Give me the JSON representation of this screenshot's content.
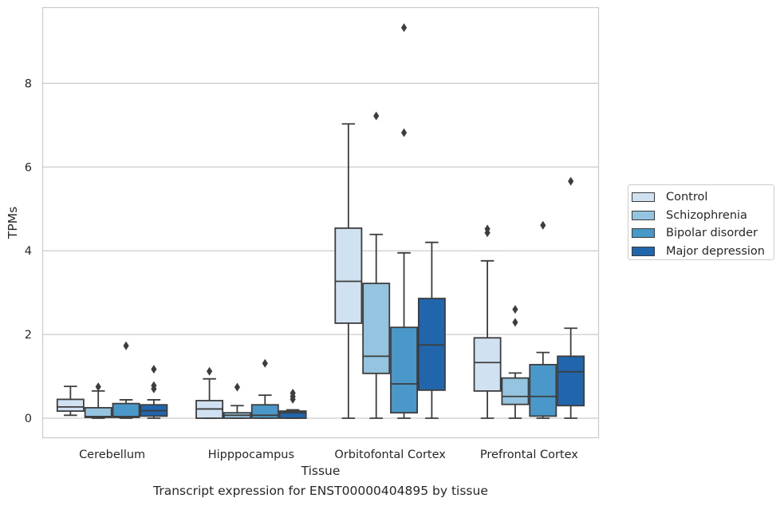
{
  "chart_data": {
    "type": "box",
    "title": "",
    "caption": "Transcript expression for ENST00000404895 by tissue",
    "xlabel": "Tissue",
    "ylabel": "TPMs",
    "ylim": [
      -0.45,
      9.7
    ],
    "yticks": [
      0,
      2,
      4,
      6,
      8
    ],
    "categories": [
      "Cerebellum",
      "Hipppocampus",
      "Orbitofontal Cortex",
      "Prefrontal Cortex"
    ],
    "grid": "horizontal",
    "legend_position": "right",
    "series": [
      {
        "name": "Control",
        "color": "#d0e1f2",
        "boxes": [
          {
            "whislo": 0.07,
            "q1": 0.17,
            "med": 0.27,
            "q3": 0.45,
            "whishi": 0.76,
            "fliers": []
          },
          {
            "whislo": 0.0,
            "q1": 0.0,
            "med": 0.22,
            "q3": 0.42,
            "whishi": 0.94,
            "fliers": [
              1.12
            ]
          },
          {
            "whislo": 0.0,
            "q1": 2.27,
            "med": 3.27,
            "q3": 4.54,
            "whishi": 7.03,
            "fliers": []
          },
          {
            "whislo": 0.0,
            "q1": 0.65,
            "med": 1.33,
            "q3": 1.92,
            "whishi": 3.76,
            "fliers": [
              4.43,
              4.52
            ]
          }
        ]
      },
      {
        "name": "Schizophrenia",
        "color": "#94c4df",
        "boxes": [
          {
            "whislo": 0.0,
            "q1": 0.02,
            "med": 0.04,
            "q3": 0.25,
            "whishi": 0.65,
            "fliers": [
              0.75
            ]
          },
          {
            "whislo": 0.0,
            "q1": 0.0,
            "med": 0.07,
            "q3": 0.13,
            "whishi": 0.3,
            "fliers": [
              0.74
            ]
          },
          {
            "whislo": 0.0,
            "q1": 1.07,
            "med": 1.48,
            "q3": 3.22,
            "whishi": 4.39,
            "fliers": [
              7.22
            ]
          },
          {
            "whislo": 0.0,
            "q1": 0.33,
            "med": 0.52,
            "q3": 0.96,
            "whishi": 1.08,
            "fliers": [
              2.29,
              2.6
            ]
          }
        ]
      },
      {
        "name": "Bipolar disorder",
        "color": "#4a98c9",
        "boxes": [
          {
            "whislo": 0.0,
            "q1": 0.02,
            "med": 0.04,
            "q3": 0.35,
            "whishi": 0.44,
            "fliers": [
              1.73
            ]
          },
          {
            "whislo": 0.0,
            "q1": 0.0,
            "med": 0.07,
            "q3": 0.32,
            "whishi": 0.55,
            "fliers": [
              1.31
            ]
          },
          {
            "whislo": 0.0,
            "q1": 0.13,
            "med": 0.82,
            "q3": 2.17,
            "whishi": 3.95,
            "fliers": [
              9.33,
              6.82
            ]
          },
          {
            "whislo": 0.0,
            "q1": 0.05,
            "med": 0.52,
            "q3": 1.28,
            "whishi": 1.57,
            "fliers": [
              4.61
            ]
          }
        ]
      },
      {
        "name": "Major depression",
        "color": "#2166ac",
        "boxes": [
          {
            "whislo": 0.0,
            "q1": 0.05,
            "med": 0.18,
            "q3": 0.32,
            "whishi": 0.44,
            "fliers": [
              0.7,
              0.78,
              1.17
            ]
          },
          {
            "whislo": 0.0,
            "q1": 0.0,
            "med": 0.13,
            "q3": 0.17,
            "whishi": 0.2,
            "fliers": [
              0.45,
              0.52,
              0.6
            ]
          },
          {
            "whislo": 0.0,
            "q1": 0.67,
            "med": 1.75,
            "q3": 2.86,
            "whishi": 4.2,
            "fliers": []
          },
          {
            "whislo": 0.0,
            "q1": 0.3,
            "med": 1.11,
            "q3": 1.48,
            "whishi": 2.15,
            "fliers": [
              5.66
            ]
          }
        ]
      }
    ]
  }
}
